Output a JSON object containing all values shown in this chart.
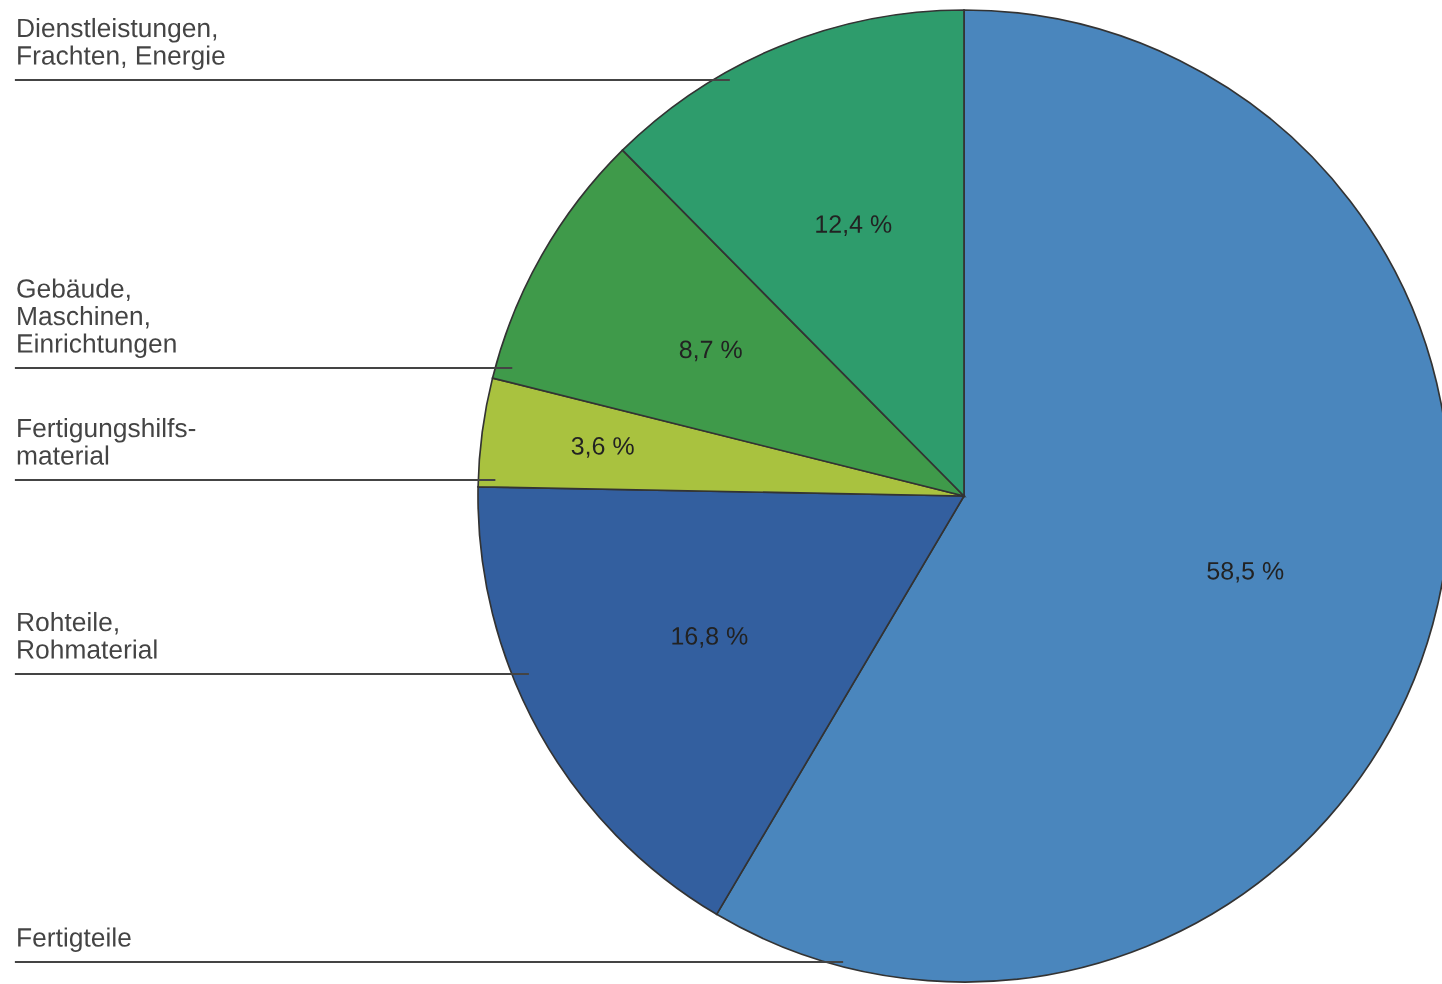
{
  "chart_data": {
    "type": "pie",
    "categories": [
      "Fertigteile",
      "Rohteile,\nRohmaterial",
      "Fertigungshilfs-\nmaterial",
      "Gebäude,\nMaschinen,\nEinrichtungen",
      "Dienstleistungen,\nFrachten, Energie"
    ],
    "values": [
      58.5,
      16.8,
      3.6,
      8.7,
      12.4
    ],
    "colors": [
      "#4a86bd",
      "#335f9f",
      "#a9c23f",
      "#3f9a4a",
      "#2e9c6c"
    ],
    "value_labels": [
      "58,5 %",
      "16,8 %",
      "3,6 %",
      "8,7 %",
      "12,4 %"
    ]
  }
}
